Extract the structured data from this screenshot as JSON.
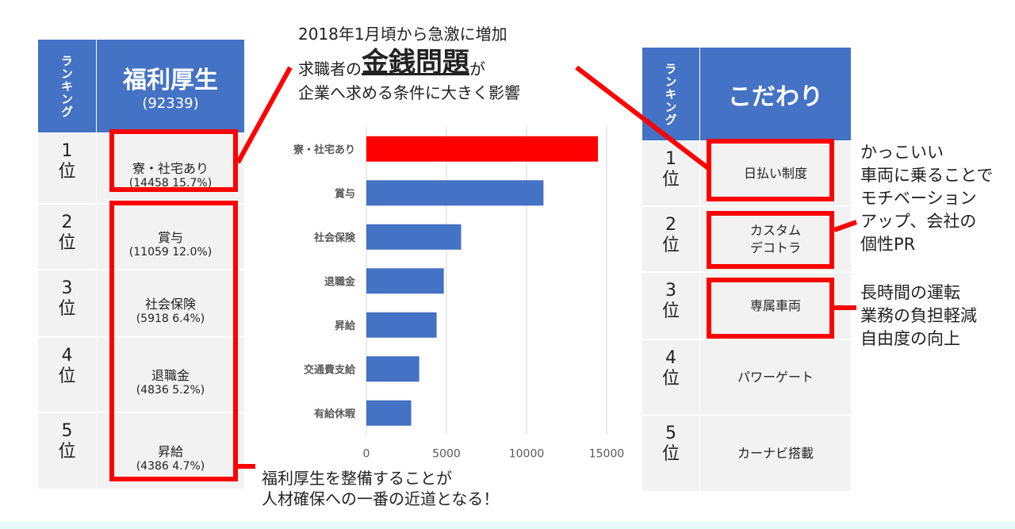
{
  "headline": {
    "line1": "2018年1月頃から急激に増加",
    "line2_pre": "求職者の",
    "line2_em": "金銭問題",
    "line2_post": "が",
    "line3": "企業へ求める条件に大きく影響"
  },
  "left_table": {
    "rank_header": "ランキング",
    "title": "福利厚生",
    "total": "(92339)",
    "rows": [
      {
        "rank": "1\n位",
        "item": "寮・社宅あり",
        "detail": "(14458 15.7%)"
      },
      {
        "rank": "2\n位",
        "item": "賞与",
        "detail": "(11059 12.0%)"
      },
      {
        "rank": "3\n位",
        "item": "社会保険",
        "detail": "(5918 6.4%)"
      },
      {
        "rank": "4\n位",
        "item": "退職金",
        "detail": "(4836 5.2%)"
      },
      {
        "rank": "5\n位",
        "item": "昇給",
        "detail": "(4386 4.7%)"
      }
    ]
  },
  "right_table": {
    "rank_header": "ランキング",
    "title": "こだわり",
    "rows": [
      {
        "rank": "1\n位",
        "item": "日払い制度"
      },
      {
        "rank": "2\n位",
        "item": "カスタム\nデコトラ"
      },
      {
        "rank": "3\n位",
        "item": "専属車両"
      },
      {
        "rank": "4\n位",
        "item": "パワーゲート"
      },
      {
        "rank": "5\n位",
        "item": "カーナビ搭載"
      }
    ]
  },
  "notes": {
    "bottom": "福利厚生を整備することが\n人材確保への一番の近道となる！",
    "right1": "かっこいい\n車両に乗ることで\nモチベーション\nアップ、会社の\n個性PR",
    "right2": "長時間の運転\n業務の負担軽減\n自由度の向上"
  },
  "colors": {
    "header": "#4472c4",
    "bar": "#4472c4",
    "highlight": "#ff0000",
    "cell": "#f2f2f2"
  },
  "chart_data": {
    "type": "bar",
    "orientation": "horizontal",
    "categories": [
      "寮・社宅あり",
      "賞与",
      "社会保険",
      "退職金",
      "昇給",
      "交通費支給",
      "有給休暇"
    ],
    "values": [
      14458,
      11059,
      5918,
      4836,
      4386,
      3300,
      2800
    ],
    "highlight_index": 0,
    "xlim": [
      0,
      15000
    ],
    "xticks": [
      "0",
      "5000",
      "10000",
      "15000"
    ],
    "grid": true,
    "legend": "none"
  }
}
